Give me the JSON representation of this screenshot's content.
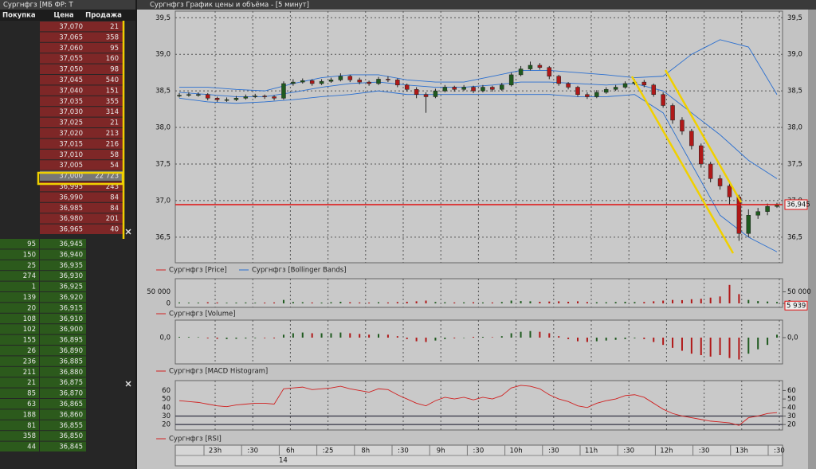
{
  "order_book": {
    "title": "Сургнфгз [МБ ФР: Т",
    "headers": [
      "Покупка",
      "Цена",
      "Продажа"
    ],
    "asks": [
      [
        "37,070",
        "21"
      ],
      [
        "37,065",
        "358"
      ],
      [
        "37,060",
        "95"
      ],
      [
        "37,055",
        "160"
      ],
      [
        "37,050",
        "98"
      ],
      [
        "37,045",
        "540"
      ],
      [
        "37,040",
        "151"
      ],
      [
        "37,035",
        "355"
      ],
      [
        "37,030",
        "314"
      ],
      [
        "37,025",
        "21"
      ],
      [
        "37,020",
        "213"
      ],
      [
        "37,015",
        "216"
      ],
      [
        "37,010",
        "58"
      ],
      [
        "37,005",
        "54"
      ],
      [
        "37,000",
        "22 723"
      ],
      [
        "36,995",
        "243"
      ],
      [
        "36,990",
        "84"
      ],
      [
        "36,985",
        "84"
      ],
      [
        "36,980",
        "201"
      ],
      [
        "36,965",
        "40"
      ]
    ],
    "bids": [
      [
        "95",
        "36,945"
      ],
      [
        "150",
        "36,940"
      ],
      [
        "25",
        "36,935"
      ],
      [
        "274",
        "36,930"
      ],
      [
        "1",
        "36,925"
      ],
      [
        "139",
        "36,920"
      ],
      [
        "20",
        "36,915"
      ],
      [
        "108",
        "36,910"
      ],
      [
        "102",
        "36,900"
      ],
      [
        "155",
        "36,895"
      ],
      [
        "26",
        "36,890"
      ],
      [
        "236",
        "36,885"
      ],
      [
        "211",
        "36,880"
      ],
      [
        "21",
        "36,875"
      ],
      [
        "85",
        "36,870"
      ],
      [
        "63",
        "36,865"
      ],
      [
        "188",
        "36,860"
      ],
      [
        "81",
        "36,855"
      ],
      [
        "358",
        "36,850"
      ],
      [
        "44",
        "36,845"
      ]
    ]
  },
  "window_title": "Сургнфгз График цены и объёма - [5 минут]",
  "price_chart": {
    "type": "candlestick",
    "ylim": [
      36.15,
      39.59
    ],
    "yticks": [
      {
        "value": 39.5,
        "label": "39,5"
      },
      {
        "value": 39.0,
        "label": "39,0"
      },
      {
        "value": 38.5,
        "label": "38,5"
      },
      {
        "value": 38.0,
        "label": "38,0"
      },
      {
        "value": 37.5,
        "label": "37,5"
      },
      {
        "value": 37.0,
        "label": "37,0"
      },
      {
        "value": 36.5,
        "label": "36,5"
      }
    ],
    "up_color": "#1f5a1f",
    "down_color": "#b01818",
    "band_color": "#2a6fd0",
    "last_price": {
      "value": 36.945,
      "label": "36,945"
    },
    "candles": [
      [
        38.44,
        38.47,
        38.41,
        38.44
      ],
      [
        38.44,
        38.48,
        38.42,
        38.45
      ],
      [
        38.45,
        38.48,
        38.42,
        38.45
      ],
      [
        38.45,
        38.47,
        38.37,
        38.4
      ],
      [
        38.4,
        38.42,
        38.35,
        38.38
      ],
      [
        38.38,
        38.41,
        38.35,
        38.38
      ],
      [
        38.38,
        38.43,
        38.36,
        38.4
      ],
      [
        38.4,
        38.45,
        38.38,
        38.42
      ],
      [
        38.42,
        38.46,
        38.4,
        38.43
      ],
      [
        38.43,
        38.45,
        38.39,
        38.42
      ],
      [
        38.42,
        38.44,
        38.37,
        38.4
      ],
      [
        38.4,
        38.63,
        38.38,
        38.6
      ],
      [
        38.6,
        38.66,
        38.57,
        38.62
      ],
      [
        38.62,
        38.67,
        38.6,
        38.64
      ],
      [
        38.64,
        38.66,
        38.57,
        38.6
      ],
      [
        38.6,
        38.66,
        38.58,
        38.63
      ],
      [
        38.63,
        38.68,
        38.61,
        38.65
      ],
      [
        38.65,
        38.74,
        38.63,
        38.7
      ],
      [
        38.7,
        38.72,
        38.62,
        38.65
      ],
      [
        38.65,
        38.68,
        38.59,
        38.62
      ],
      [
        38.62,
        38.64,
        38.57,
        38.6
      ],
      [
        38.6,
        38.69,
        38.58,
        38.66
      ],
      [
        38.66,
        38.7,
        38.62,
        38.65
      ],
      [
        38.65,
        38.67,
        38.55,
        38.58
      ],
      [
        38.58,
        38.6,
        38.49,
        38.52
      ],
      [
        38.52,
        38.55,
        38.4,
        38.45
      ],
      [
        38.45,
        38.48,
        38.2,
        38.42
      ],
      [
        38.42,
        38.53,
        38.4,
        38.5
      ],
      [
        38.5,
        38.58,
        38.48,
        38.55
      ],
      [
        38.55,
        38.57,
        38.49,
        38.52
      ],
      [
        38.52,
        38.58,
        38.5,
        38.55
      ],
      [
        38.55,
        38.57,
        38.47,
        38.5
      ],
      [
        38.5,
        38.58,
        38.48,
        38.55
      ],
      [
        38.55,
        38.57,
        38.49,
        38.52
      ],
      [
        38.52,
        38.61,
        38.5,
        38.58
      ],
      [
        38.58,
        38.75,
        38.56,
        38.72
      ],
      [
        38.72,
        38.84,
        38.7,
        38.8
      ],
      [
        38.8,
        38.9,
        38.78,
        38.85
      ],
      [
        38.85,
        38.88,
        38.79,
        38.82
      ],
      [
        38.82,
        38.84,
        38.66,
        38.7
      ],
      [
        38.7,
        38.72,
        38.57,
        38.6
      ],
      [
        38.6,
        38.62,
        38.52,
        38.55
      ],
      [
        38.55,
        38.57,
        38.42,
        38.45
      ],
      [
        38.45,
        38.48,
        38.39,
        38.42
      ],
      [
        38.42,
        38.51,
        38.4,
        38.48
      ],
      [
        38.48,
        38.55,
        38.46,
        38.52
      ],
      [
        38.52,
        38.58,
        38.5,
        38.55
      ],
      [
        38.55,
        38.63,
        38.53,
        38.6
      ],
      [
        38.6,
        38.66,
        38.58,
        38.62
      ],
      [
        38.62,
        38.65,
        38.55,
        38.58
      ],
      [
        38.58,
        38.6,
        38.42,
        38.45
      ],
      [
        38.45,
        38.48,
        38.27,
        38.3
      ],
      [
        38.3,
        38.33,
        38.05,
        38.1
      ],
      [
        38.1,
        38.14,
        37.9,
        37.95
      ],
      [
        37.95,
        37.98,
        37.7,
        37.75
      ],
      [
        37.75,
        37.78,
        37.45,
        37.5
      ],
      [
        37.5,
        37.53,
        37.25,
        37.3
      ],
      [
        37.3,
        37.35,
        37.15,
        37.2
      ],
      [
        37.2,
        37.25,
        36.95,
        37.05
      ],
      [
        37.05,
        37.08,
        36.45,
        36.55
      ],
      [
        36.55,
        36.88,
        36.5,
        36.8
      ],
      [
        36.8,
        36.9,
        36.75,
        36.85
      ],
      [
        36.85,
        36.96,
        36.8,
        36.92
      ],
      [
        36.92,
        36.97,
        36.9,
        36.945
      ]
    ],
    "bands": {
      "upper": [
        38.55,
        38.55,
        38.52,
        38.5,
        38.6,
        38.68,
        38.72,
        38.72,
        38.65,
        38.62,
        38.62,
        38.7,
        38.78,
        38.78,
        38.75,
        38.72,
        38.68,
        38.7,
        39.0,
        39.2,
        39.1,
        38.45
      ],
      "middle": [
        38.48,
        38.45,
        38.42,
        38.42,
        38.48,
        38.55,
        38.6,
        38.62,
        38.58,
        38.55,
        38.55,
        38.58,
        38.62,
        38.62,
        38.6,
        38.58,
        38.6,
        38.5,
        38.2,
        37.9,
        37.55,
        37.3
      ],
      "lower": [
        38.4,
        38.35,
        38.33,
        38.35,
        38.38,
        38.42,
        38.45,
        38.5,
        38.45,
        38.45,
        38.45,
        38.45,
        38.45,
        38.45,
        38.42,
        38.42,
        38.45,
        38.2,
        37.5,
        36.8,
        36.5,
        36.3
      ]
    },
    "legend": [
      "Сургнфгз [Price]",
      "Сургнфгз [Bollinger Bands]"
    ]
  },
  "volume_chart": {
    "type": "bar",
    "ylim": [
      0,
      100000
    ],
    "yticks": [
      {
        "value": 50000,
        "label": "50 000"
      },
      0
    ],
    "last_label": "5 939",
    "values": [
      4000,
      3000,
      3500,
      5000,
      4000,
      3000,
      3500,
      4000,
      3000,
      3500,
      4000,
      15000,
      6000,
      5000,
      4000,
      3500,
      5000,
      7000,
      5000,
      4000,
      3500,
      5000,
      4000,
      6000,
      7000,
      9000,
      12000,
      6000,
      5000,
      4000,
      4500,
      5000,
      4000,
      4000,
      6000,
      12000,
      10000,
      9000,
      7000,
      8000,
      9000,
      7000,
      9000,
      6000,
      5000,
      5000,
      6000,
      7000,
      6000,
      6000,
      9000,
      12000,
      15000,
      14000,
      18000,
      20000,
      25000,
      30000,
      80000,
      40000,
      15000,
      10000,
      8000,
      5939
    ],
    "legend": "Сургнфгз [Volume]"
  },
  "macd_chart": {
    "type": "bar",
    "ylim": [
      -0.18,
      0.12
    ],
    "yticks": [
      {
        "value": 0,
        "label": "0,0"
      }
    ],
    "values": [
      0.005,
      0.004,
      0.003,
      -0.005,
      -0.008,
      -0.01,
      -0.008,
      -0.006,
      -0.004,
      -0.004,
      -0.005,
      0.02,
      0.03,
      0.035,
      0.03,
      0.03,
      0.03,
      0.035,
      0.03,
      0.025,
      0.02,
      0.025,
      0.02,
      0.01,
      -0.01,
      -0.025,
      -0.03,
      -0.02,
      -0.01,
      -0.005,
      0.0,
      0.005,
      0.005,
      0.003,
      0.01,
      0.03,
      0.04,
      0.045,
      0.04,
      0.03,
      0.01,
      -0.01,
      -0.025,
      -0.03,
      -0.025,
      -0.02,
      -0.015,
      -0.01,
      -0.005,
      -0.01,
      -0.03,
      -0.05,
      -0.07,
      -0.09,
      -0.11,
      -0.12,
      -0.13,
      -0.12,
      -0.14,
      -0.15,
      -0.11,
      -0.08,
      -0.05,
      0.02
    ],
    "legend": "Сургнфгз [MACD Histogram]"
  },
  "rsi_chart": {
    "type": "line",
    "ylim": [
      13.6,
      71.6
    ],
    "yticks": [
      60,
      50,
      40,
      30,
      20
    ],
    "levels": [
      30,
      20
    ],
    "color": "#d02020",
    "values": [
      48,
      47,
      46,
      44,
      42,
      41,
      43,
      44,
      45,
      45,
      44,
      62,
      63,
      64,
      61,
      62,
      63,
      65,
      62,
      60,
      58,
      62,
      61,
      55,
      50,
      45,
      42,
      48,
      52,
      50,
      52,
      49,
      52,
      50,
      54,
      63,
      66,
      65,
      62,
      55,
      50,
      47,
      42,
      40,
      45,
      48,
      50,
      54,
      55,
      52,
      45,
      38,
      33,
      30,
      28,
      26,
      24,
      23,
      22,
      19,
      28,
      30,
      33,
      34
    ],
    "legend": "Сургнфгз [RSI]"
  },
  "time_axis": {
    "labels": [
      "23h",
      ":30",
      "6h",
      ":25",
      "8h",
      ":30",
      "9h",
      ":30",
      "10h",
      ":30",
      "11h",
      ":30",
      "12h",
      ":30",
      "13h",
      ":30"
    ],
    "date": "14"
  }
}
